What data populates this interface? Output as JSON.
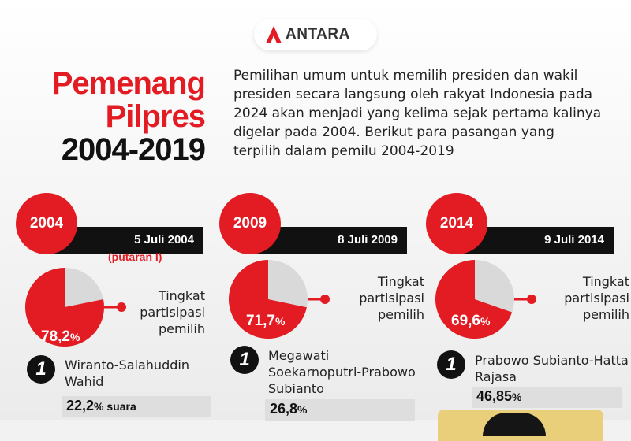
{
  "brand": {
    "name": "ANTARA",
    "mark_color": "#e31b23"
  },
  "title": {
    "line1": "Pemenang",
    "line2": "Pilpres",
    "line3": "2004-2019",
    "accent": "#e31b23"
  },
  "intro": "Pemilihan umum untuk memilih presiden dan wakil presiden secara langsung oleh rakyat Indonesia pada 2024 akan menjadi yang kelima sejak pertama kalinya digelar pada 2004. Berikut para pasangan yang terpilih dalam pemilu 2004-2019",
  "participation_label": "Tingkat partisipasi pemilih",
  "elections": [
    {
      "year": "2004",
      "date": "5 Juli 2004",
      "note": "(putaran I)",
      "participation_pct": 78.2,
      "participation_num": "78,2",
      "pct_sign": "%",
      "rank": "1",
      "winner": "Wiranto-Salahuddin Wahid",
      "result_num": "22,2",
      "result_suffix": "% suara"
    },
    {
      "year": "2009",
      "date": "8 Juli 2009",
      "participation_pct": 71.7,
      "participation_num": "71,7",
      "pct_sign": "%",
      "rank": "1",
      "winner": "Megawati Soekarnoputri-Prabowo Subianto",
      "result_num": "26,8",
      "result_suffix": "%"
    },
    {
      "year": "2014",
      "date": "9 Juli 2014",
      "participation_pct": 69.6,
      "participation_num": "69,6",
      "pct_sign": "%",
      "rank": "1",
      "winner": "Prabowo Subianto-Hatta Rajasa",
      "result_num": "46,85",
      "result_suffix": "%"
    }
  ],
  "colors": {
    "red": "#e31b23",
    "grey": "#d9d9d9",
    "dark": "#111111"
  }
}
